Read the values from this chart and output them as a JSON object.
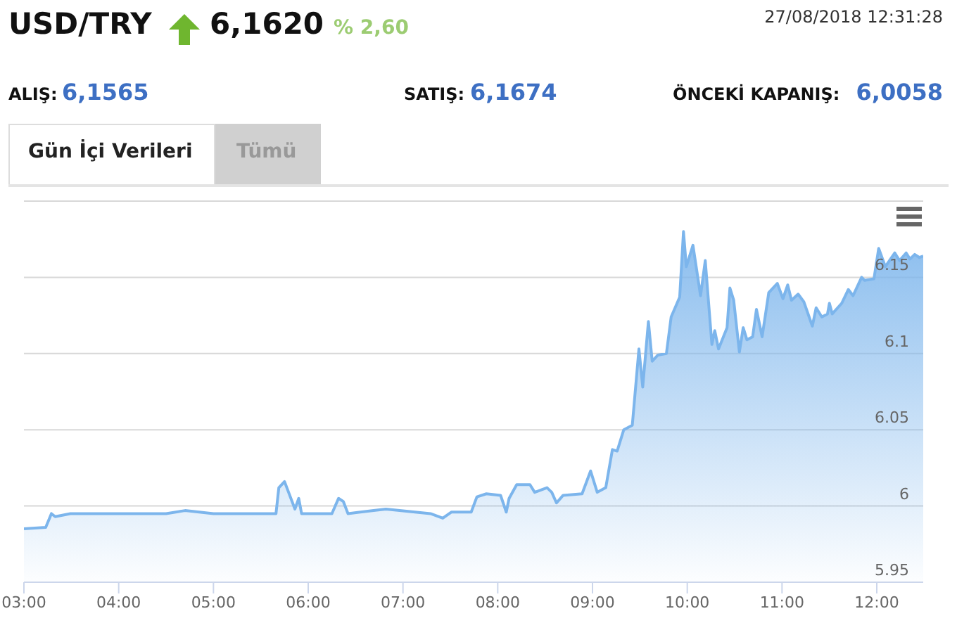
{
  "chart_data": {
    "type": "area",
    "title": "USD/TRY",
    "annotations": [
      "6,1620",
      "% 2,60",
      "27/08/2018 12:31:28",
      "ALIŞ:",
      "6,1565",
      "SATIŞ:",
      "6,1674",
      "ÖNCEKİ KAPANIŞ:",
      "6,0058",
      "Gün İçi Verileri",
      "Tümü"
    ],
    "x": [
      3.0,
      3.23,
      3.29,
      3.33,
      3.49,
      4.0,
      4.5,
      4.7,
      5.0,
      5.66,
      5.69,
      5.75,
      5.86,
      5.9,
      5.93,
      6.25,
      6.32,
      6.37,
      6.42,
      6.69,
      6.82,
      7.29,
      7.42,
      7.51,
      7.72,
      7.78,
      7.88,
      8.03,
      8.09,
      8.12,
      8.2,
      8.34,
      8.39,
      8.52,
      8.57,
      8.62,
      8.69,
      8.89,
      8.98,
      9.05,
      9.14,
      9.21,
      9.26,
      9.33,
      9.42,
      9.49,
      9.53,
      9.59,
      9.63,
      9.69,
      9.78,
      9.83,
      9.92,
      9.96,
      9.99,
      10.06,
      10.14,
      10.19,
      10.26,
      10.29,
      10.33,
      10.42,
      10.45,
      10.49,
      10.55,
      10.59,
      10.63,
      10.69,
      10.73,
      10.79,
      10.86,
      10.95,
      11.01,
      11.06,
      11.1,
      11.17,
      11.23,
      11.32,
      11.36,
      11.42,
      11.48,
      11.5,
      11.53,
      11.63,
      11.7,
      11.75,
      11.84,
      11.87,
      11.97,
      12.02,
      12.09,
      12.19,
      12.24,
      12.31,
      12.35,
      12.4,
      12.45,
      12.49
    ],
    "series": [
      {
        "color": "#7cb5ec",
        "values": [
          5.985,
          5.986,
          5.995,
          5.993,
          5.995,
          5.995,
          5.995,
          5.997,
          5.995,
          5.995,
          6.012,
          6.016,
          5.998,
          6.005,
          5.995,
          5.995,
          6.005,
          6.003,
          5.995,
          5.997,
          5.998,
          5.995,
          5.992,
          5.996,
          5.996,
          6.006,
          6.008,
          6.007,
          5.996,
          6.005,
          6.014,
          6.014,
          6.009,
          6.012,
          6.009,
          6.002,
          6.007,
          6.008,
          6.023,
          6.009,
          6.012,
          6.037,
          6.036,
          6.05,
          6.053,
          6.103,
          6.078,
          6.121,
          6.095,
          6.099,
          6.1,
          6.124,
          6.137,
          6.18,
          6.157,
          6.171,
          6.138,
          6.161,
          6.106,
          6.115,
          6.103,
          6.117,
          6.143,
          6.135,
          6.101,
          6.117,
          6.109,
          6.111,
          6.129,
          6.111,
          6.14,
          6.146,
          6.136,
          6.145,
          6.135,
          6.139,
          6.134,
          6.118,
          6.13,
          6.124,
          6.126,
          6.133,
          6.126,
          6.133,
          6.142,
          6.138,
          6.15,
          6.148,
          6.149,
          6.169,
          6.157,
          6.166,
          6.161,
          6.166,
          6.162,
          6.165,
          6.163,
          6.164
        ]
      }
    ],
    "xlim": [
      3,
      12.49
    ],
    "xticks": [
      {
        "value": 3,
        "label": "03:00"
      },
      {
        "value": 4,
        "label": "04:00"
      },
      {
        "value": 5,
        "label": "05:00"
      },
      {
        "value": 6,
        "label": "06:00"
      },
      {
        "value": 7,
        "label": "07:00"
      },
      {
        "value": 8,
        "label": "08:00"
      },
      {
        "value": 9,
        "label": "09:00"
      },
      {
        "value": 10,
        "label": "10:00"
      },
      {
        "value": 11,
        "label": "11:00"
      },
      {
        "value": 12,
        "label": "12:00"
      }
    ],
    "ylim": [
      5.95,
      6.2
    ],
    "yticks": [
      5.95,
      6,
      6.05,
      6.1,
      6.15,
      {
        "value": 6.2,
        "label": null
      }
    ],
    "grid": "y",
    "legend": false,
    "marker": "none",
    "line_style": "solid"
  }
}
